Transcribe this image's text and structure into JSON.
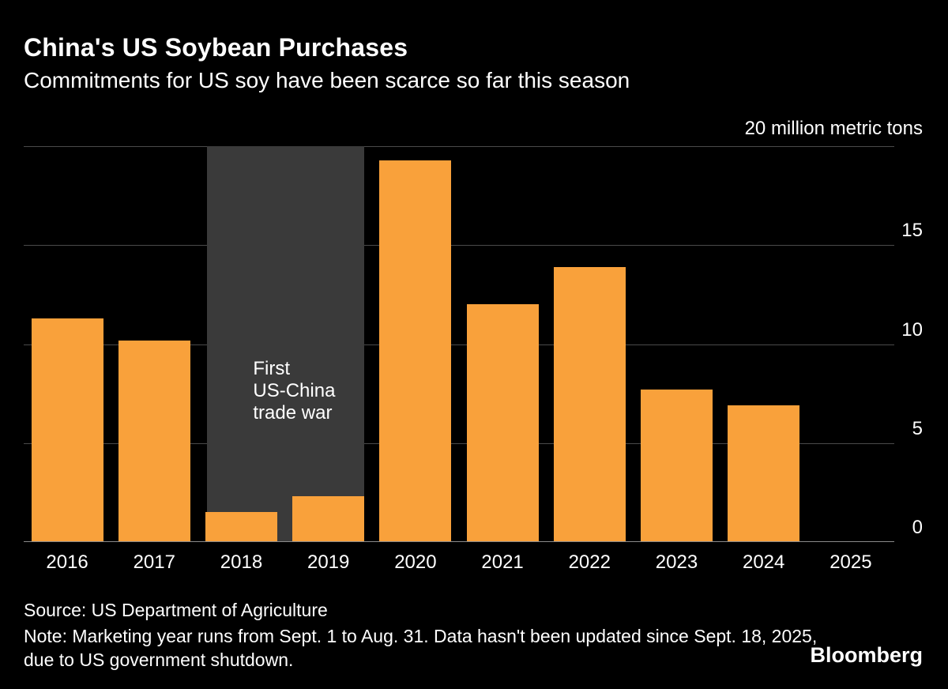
{
  "header": {
    "title": "China's US Soybean Purchases",
    "subtitle": "Commitments for US soy have been scarce so far this season"
  },
  "chart_data": {
    "type": "bar",
    "title": "China's US Soybean Purchases",
    "subtitle": "Commitments for US soy have been scarce so far this season",
    "unit_label": "20 million metric tons",
    "categories": [
      "2016",
      "2017",
      "2018",
      "2019",
      "2020",
      "2021",
      "2022",
      "2023",
      "2024",
      "2025"
    ],
    "values": [
      11.3,
      10.2,
      1.5,
      2.3,
      19.3,
      12.0,
      13.9,
      7.7,
      6.9,
      0
    ],
    "ylim": [
      0,
      20
    ],
    "yticks": [
      0,
      5,
      10,
      15,
      20
    ],
    "ytick_labels": [
      15,
      10,
      5,
      0
    ],
    "bar_color": "#F9A13B",
    "grid": true,
    "legend": "none",
    "annotation": {
      "text": "First\nUS-China\ntrade war",
      "region_categories": [
        "2018",
        "2019"
      ],
      "region_color": "#3A3A3A"
    }
  },
  "footer": {
    "source": "Source: US Department of Agriculture",
    "note": "Note: Marketing year runs from Sept. 1 to Aug. 31. Data hasn't been updated since Sept. 18, 2025, due to US government shutdown.",
    "logo": "Bloomberg"
  }
}
